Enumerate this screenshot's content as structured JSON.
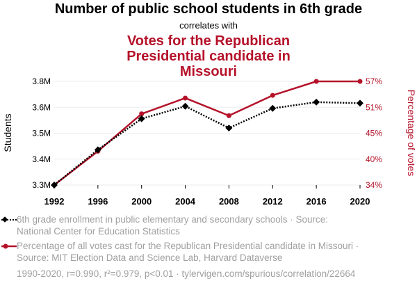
{
  "title": "Number of public school students in 6th grade",
  "connector": "correlates with",
  "subtitle": "Votes for the Republican Presidential candidate in Missouri",
  "colors": {
    "series1": "#000000",
    "series2": "#b5122a",
    "muted": "#a0a0a0"
  },
  "legend": [
    {
      "marker": "diamond-dotted",
      "text": "6th grade enrollment in public elementary and secondary schools · Source: National Center for Education Statistics"
    },
    {
      "marker": "circle-solid",
      "text": "Percentage of all votes cast for the Republican Presidential candidate in Missouri · Source: MIT Election Data and Science Lab, Harvard Dataverse"
    }
  ],
  "footer": "1990-2020, r=0.990, r²=0.979, p<0.01 · tylervigen.com/spurious/correlation/22664",
  "chart_data": {
    "type": "line",
    "x": [
      1992,
      1996,
      2000,
      2004,
      2008,
      2012,
      2016,
      2020
    ],
    "xticks": [
      "1992",
      "1996",
      "2000",
      "2004",
      "2008",
      "2012",
      "2016",
      "2020"
    ],
    "ylabel_left": "Students",
    "ylabel_right": "Percentage of votes",
    "yticks_left": [
      "3.3M",
      "3.4M",
      "3.5M",
      "3.6M",
      "3.8M"
    ],
    "yticks_right": [
      "34%",
      "40%",
      "45%",
      "51%",
      "57%"
    ],
    "ylim_left": [
      3.3,
      3.8
    ],
    "ylim_right": [
      34,
      57
    ],
    "series": [
      {
        "axis": "left",
        "values": [
          3.3,
          3.47,
          3.62,
          3.68,
          3.575,
          3.67,
          3.7,
          3.695
        ]
      },
      {
        "axis": "right",
        "values": [
          34.0,
          41.5,
          49.8,
          53.3,
          49.4,
          53.9,
          57.0,
          57.0
        ]
      }
    ],
    "grid": true
  }
}
